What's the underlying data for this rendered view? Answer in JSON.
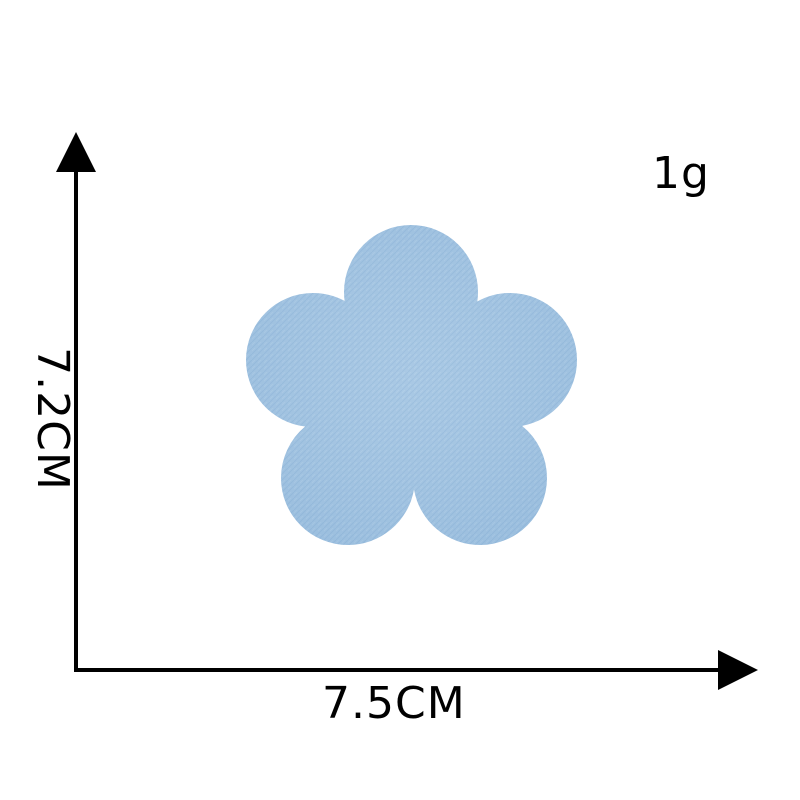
{
  "product": {
    "weight": "1g",
    "width": "7.5CM",
    "height": "7.2CM",
    "colors": {
      "denim_light": "#a4c6e3",
      "denim_mid": "#8fb7db",
      "denim_dark": "#7aa7cf",
      "axis": "#000000"
    }
  }
}
